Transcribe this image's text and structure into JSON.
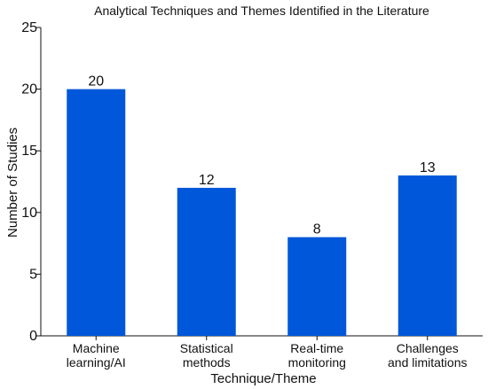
{
  "chart_data": {
    "type": "bar",
    "title": "Analytical Techniques and Themes Identified in the Literature",
    "xlabel": "Technique/Theme",
    "ylabel": "Number of Studies",
    "categories": [
      [
        "Machine",
        "learning/AI"
      ],
      [
        "Statistical",
        "methods"
      ],
      [
        "Real-time",
        "monitoring"
      ],
      [
        "Challenges",
        "and limitations"
      ]
    ],
    "values": [
      20,
      12,
      8,
      13
    ],
    "data_labels": [
      "20",
      "12",
      "8",
      "13"
    ],
    "ylim": [
      0,
      25
    ],
    "yticks": [
      0,
      5,
      10,
      15,
      20,
      25
    ],
    "grid": false,
    "bar_color": "#0057D9",
    "axis_color": "#111111"
  }
}
